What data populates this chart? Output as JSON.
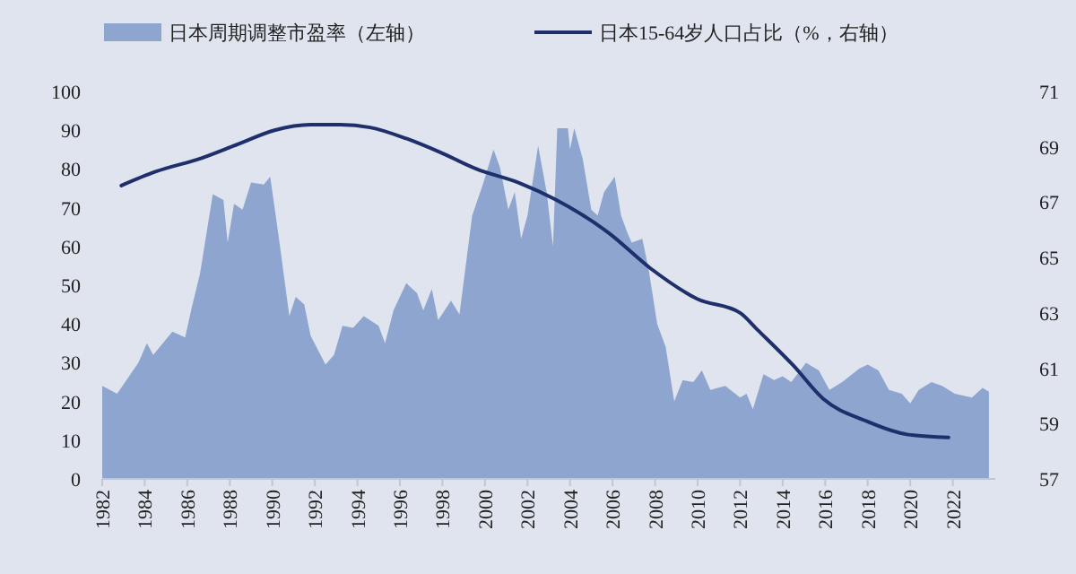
{
  "chart_data": {
    "type": "area",
    "legend": "top",
    "grid": false,
    "xlim": [
      1982,
      2024
    ],
    "xticks": [
      1982,
      1984,
      1986,
      1988,
      1990,
      1992,
      1994,
      1996,
      1998,
      2000,
      2002,
      2004,
      2006,
      2008,
      2010,
      2012,
      2014,
      2016,
      2018,
      2020,
      2022
    ],
    "ylim": [
      0,
      100
    ],
    "yticks": [
      0,
      10,
      20,
      30,
      40,
      50,
      60,
      70,
      80,
      90,
      100
    ],
    "y2lim": [
      57,
      71
    ],
    "y2ticks": [
      57,
      59,
      61,
      63,
      65,
      67,
      69,
      71
    ],
    "series": [
      {
        "name": "日本周期调整市盈率（左轴）",
        "color": "#8ea5d0",
        "x": [
          1982,
          1982.7,
          1983.7,
          1984.1,
          1984.4,
          1985.3,
          1985.9,
          1986.2,
          1986.6,
          1987.2,
          1987.7,
          1987.9,
          1988.2,
          1988.6,
          1989,
          1989.6,
          1989.9,
          1990.3,
          1990.8,
          1991.1,
          1991.5,
          1991.8,
          1992.5,
          1992.9,
          1993.3,
          1993.8,
          1994.3,
          1995,
          1995.3,
          1995.7,
          1996.3,
          1996.8,
          1997.1,
          1997.5,
          1997.8,
          1998.4,
          1998.8,
          1999.4,
          1999.9,
          2000.4,
          2000.7,
          2001.1,
          2001.4,
          2001.7,
          2002,
          2002.5,
          2002.9,
          2003.2,
          2003.4,
          2003.9,
          2004,
          2004.2,
          2004.6,
          2005,
          2005.3,
          2005.6,
          2006.1,
          2006.4,
          2006.7,
          2006.9,
          2007.4,
          2007.7,
          2008.1,
          2008.5,
          2008.9,
          2009.3,
          2009.8,
          2010.2,
          2010.6,
          2011.3,
          2012,
          2012.3,
          2012.6,
          2013.1,
          2013.6,
          2014,
          2014.4,
          2015.1,
          2015.7,
          2016.2,
          2016.8,
          2017.6,
          2018,
          2018.5,
          2019,
          2019.6,
          2020,
          2020.4,
          2021,
          2021.5,
          2022.1,
          2022.9,
          2023.4,
          2023.7
        ],
        "values": [
          24,
          22,
          30,
          35,
          32,
          38,
          36.5,
          44,
          53,
          73.5,
          72,
          61,
          71,
          69.5,
          76.5,
          76,
          78,
          62.5,
          42,
          47,
          45,
          37,
          29.5,
          32,
          39.5,
          39,
          42,
          39.5,
          35,
          43.5,
          50.5,
          48,
          43.5,
          49,
          41,
          46,
          42.5,
          68,
          76,
          85,
          80.5,
          69.5,
          74,
          62,
          68,
          86,
          74,
          60,
          90.5,
          90.5,
          85,
          90.5,
          82.5,
          69.5,
          68,
          74,
          78,
          68,
          63.5,
          61,
          62,
          54,
          40,
          34,
          20,
          25.5,
          25,
          28,
          23,
          24,
          21,
          22,
          18,
          27,
          25.5,
          26.5,
          25,
          30,
          28,
          23,
          25,
          28.5,
          29.5,
          28,
          23,
          22,
          19.5,
          23,
          25,
          24,
          22,
          21,
          23.5,
          22.5
        ]
      },
      {
        "name": "日本15-64岁人口占比（%，右轴）",
        "type": "line",
        "axis": "y2",
        "color": "#1f2f6b",
        "x": [
          1982.9,
          1984.5,
          1986.7,
          1988.4,
          1990.1,
          1991.8,
          1993.2,
          1994.6,
          1996.3,
          1997.9,
          1999.6,
          2001.6,
          2003.3,
          2005.8,
          2007.8,
          2010,
          2012,
          2012.8,
          2014.5,
          2015.9,
          2017.9,
          2019.9,
          2021.8
        ],
        "values": [
          67.6,
          68.1,
          68.6,
          69.1,
          69.6,
          69.8,
          69.8,
          69.7,
          69.3,
          68.8,
          68.2,
          67.7,
          67.1,
          65.9,
          64.6,
          63.5,
          63,
          62.4,
          61.1,
          59.9,
          59.1,
          58.6,
          58.5
        ]
      }
    ]
  }
}
